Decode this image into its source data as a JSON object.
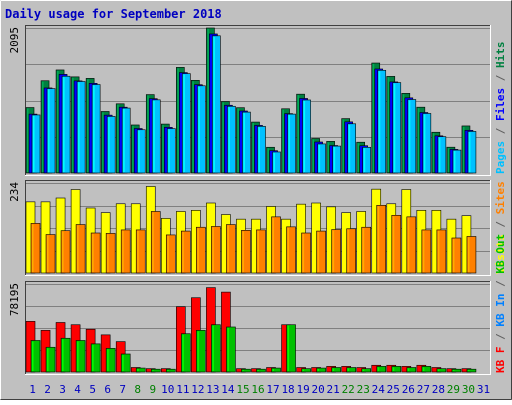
{
  "chart_data": {
    "type": "bar",
    "title": "Daily usage for September 2018",
    "categories": [
      "1",
      "2",
      "3",
      "4",
      "5",
      "6",
      "7",
      "8",
      "9",
      "10",
      "11",
      "12",
      "13",
      "14",
      "15",
      "16",
      "17",
      "18",
      "19",
      "20",
      "21",
      "22",
      "23",
      "24",
      "25",
      "26",
      "27",
      "28",
      "29",
      "30",
      "31"
    ],
    "weekend_days": [
      "8",
      "9",
      "15",
      "16",
      "22",
      "23",
      "29",
      "30"
    ],
    "panels": [
      {
        "id": "pages-files-hits",
        "max_label": "2095",
        "ylim": [
          0,
          2095
        ],
        "legend": [
          {
            "text": "Pages",
            "color": "#00c0ff"
          },
          {
            "text": " / ",
            "color": "#606060"
          },
          {
            "text": "Files",
            "color": "#0000ff"
          },
          {
            "text": " / ",
            "color": "#606060"
          },
          {
            "text": "Hits",
            "color": "#008040"
          }
        ],
        "series": [
          {
            "name": "Hits",
            "color": "#008040",
            "values": [
              946,
              1333,
              1489,
              1389,
              1367,
              889,
              1000,
              694,
              1133,
              707,
              1526,
              1339,
              2095,
              1033,
              944,
              736,
              372,
              928,
              1139,
              499,
              457,
              786,
              445,
              1589,
              1396,
              1151,
              951,
              589,
              373,
              680,
              0
            ]
          },
          {
            "name": "Files",
            "color": "#0000ff",
            "values": [
              851,
              1229,
              1425,
              1331,
              1296,
              836,
              951,
              643,
              1074,
              660,
              1451,
              1276,
              2009,
              979,
              896,
              688,
              323,
              858,
              1077,
              448,
              397,
              739,
              394,
              1503,
              1316,
              1086,
              874,
              537,
              341,
              617,
              0
            ]
          },
          {
            "name": "Pages",
            "color": "#00c0ff",
            "values": [
              839,
              1220,
              1398,
              1322,
              1278,
              818,
              938,
              625,
              1057,
              642,
              1436,
              1260,
              1982,
              964,
              880,
              674,
              304,
              851,
              1055,
              420,
              389,
              711,
              371,
              1484,
              1306,
              1062,
              860,
              525,
              331,
              601,
              0
            ]
          }
        ]
      },
      {
        "id": "visits-sites",
        "max_label": "234",
        "ylim": [
          0,
          234
        ],
        "legend": [
          {
            "text": "Visits",
            "color": "#ffff00"
          },
          {
            "text": " / ",
            "color": "#606060"
          },
          {
            "text": "Sites",
            "color": "#ff8000"
          }
        ],
        "series": [
          {
            "name": "Visits",
            "color": "#ffff00",
            "values": [
              185,
              185,
              195,
              217,
              169,
              157,
              180,
              180,
              225,
              142,
              160,
              163,
              182,
              152,
              140,
              140,
              173,
              140,
              179,
              182,
              172,
              157,
              160,
              218,
              180,
              217,
              163,
              163,
              140,
              149,
              0
            ]
          },
          {
            "name": "Sites",
            "color": "#ff8000",
            "values": [
              129,
              100,
              110,
              126,
              104,
              103,
              112,
              112,
              160,
              99,
              109,
              119,
              121,
              126,
              111,
              112,
              146,
              120,
              104,
              109,
              113,
              115,
              119,
              176,
              150,
              146,
              112,
              112,
              91,
              95,
              0
            ]
          }
        ]
      },
      {
        "id": "kb",
        "max_label": "78195",
        "ylim": [
          0,
          78195
        ],
        "legend": [
          {
            "text": "KB F",
            "color": "#ff0000"
          },
          {
            "text": " / ",
            "color": "#606060"
          },
          {
            "text": "KB In",
            "color": "#0080ff"
          },
          {
            "text": " / ",
            "color": "#606060"
          },
          {
            "text": "KB Out",
            "color": "#00c000"
          }
        ],
        "series": [
          {
            "name": "KB F",
            "color": "#ff0000",
            "values": [
              45000,
              37000,
              44000,
              42000,
              38000,
              33000,
              27000,
              4000,
              3000,
              3000,
              58000,
              66000,
              75000,
              71000,
              3000,
              3000,
              4000,
              42000,
              4000,
              4000,
              5000,
              5000,
              4000,
              6000,
              6000,
              5000,
              6000,
              4000,
              3000,
              3000,
              0
            ]
          },
          {
            "name": "KB Out",
            "color": "#00c000",
            "values": [
              28000,
              22000,
              30000,
              28000,
              25000,
              21000,
              16000,
              3500,
              2500,
              2500,
              34000,
              37000,
              42000,
              40000,
              2500,
              2500,
              3500,
              42000,
              3000,
              3500,
              4000,
              4000,
              3000,
              5000,
              5000,
              4000,
              5000,
              3000,
              2500,
              2500,
              0
            ]
          }
        ]
      }
    ],
    "grid": true,
    "legend_placement": "right"
  },
  "colors": {
    "frame_bg": "#c0c0c0",
    "plot_bg": "#c0c0c0",
    "title": "#0000c0",
    "weekday_label": "#0000c0",
    "weekend_label": "#008000",
    "gridline": "#808080"
  }
}
